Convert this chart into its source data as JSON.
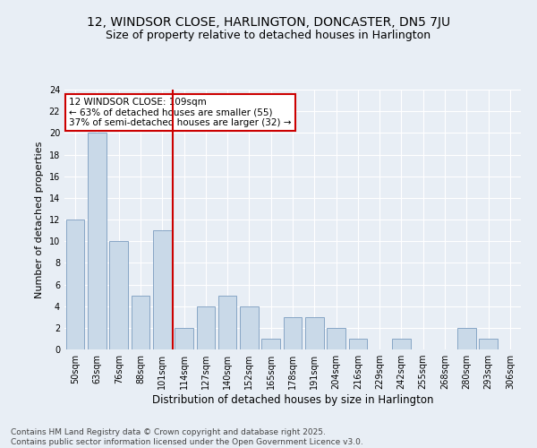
{
  "title": "12, WINDSOR CLOSE, HARLINGTON, DONCASTER, DN5 7JU",
  "subtitle": "Size of property relative to detached houses in Harlington",
  "xlabel": "Distribution of detached houses by size in Harlington",
  "ylabel": "Number of detached properties",
  "categories": [
    "50sqm",
    "63sqm",
    "76sqm",
    "88sqm",
    "101sqm",
    "114sqm",
    "127sqm",
    "140sqm",
    "152sqm",
    "165sqm",
    "178sqm",
    "191sqm",
    "204sqm",
    "216sqm",
    "229sqm",
    "242sqm",
    "255sqm",
    "268sqm",
    "280sqm",
    "293sqm",
    "306sqm"
  ],
  "values": [
    12,
    20,
    10,
    5,
    11,
    2,
    4,
    5,
    4,
    1,
    3,
    3,
    2,
    1,
    0,
    1,
    0,
    0,
    2,
    1,
    0
  ],
  "bar_color": "#c9d9e8",
  "bar_edge_color": "#7a9cbf",
  "vline_x": 4.5,
  "vline_color": "#cc0000",
  "annotation_text": "12 WINDSOR CLOSE: 109sqm\n← 63% of detached houses are smaller (55)\n37% of semi-detached houses are larger (32) →",
  "annotation_box_color": "white",
  "annotation_box_edge_color": "#cc0000",
  "ylim": [
    0,
    24
  ],
  "yticks": [
    0,
    2,
    4,
    6,
    8,
    10,
    12,
    14,
    16,
    18,
    20,
    22,
    24
  ],
  "footer": "Contains HM Land Registry data © Crown copyright and database right 2025.\nContains public sector information licensed under the Open Government Licence v3.0.",
  "bg_color": "#e8eef5",
  "plot_bg_color": "#e8eef5",
  "grid_color": "#ffffff",
  "title_fontsize": 10,
  "subtitle_fontsize": 9,
  "footer_fontsize": 6.5,
  "ylabel_fontsize": 8,
  "xlabel_fontsize": 8.5,
  "annotation_fontsize": 7.5
}
